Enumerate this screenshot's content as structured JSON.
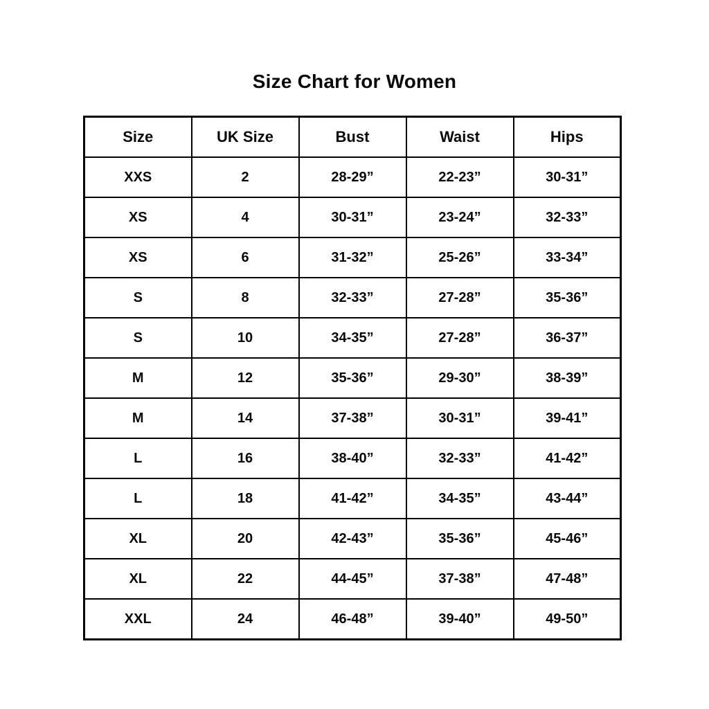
{
  "title": "Size Chart for Women",
  "chart_data": {
    "type": "table",
    "title": "Size Chart for Women",
    "columns": [
      "Size",
      "UK Size",
      "Bust",
      "Waist",
      "Hips"
    ],
    "rows": [
      [
        "XXS",
        "2",
        "28-29”",
        "22-23”",
        "30-31”"
      ],
      [
        "XS",
        "4",
        "30-31”",
        "23-24”",
        "32-33”"
      ],
      [
        "XS",
        "6",
        "31-32”",
        "25-26”",
        "33-34”"
      ],
      [
        "S",
        "8",
        "32-33”",
        "27-28”",
        "35-36”"
      ],
      [
        "S",
        "10",
        "34-35”",
        "27-28”",
        "36-37”"
      ],
      [
        "M",
        "12",
        "35-36”",
        "29-30”",
        "38-39”"
      ],
      [
        "M",
        "14",
        "37-38”",
        "30-31”",
        "39-41”"
      ],
      [
        "L",
        "16",
        "38-40”",
        "32-33”",
        "41-42”"
      ],
      [
        "L",
        "18",
        "41-42”",
        "34-35”",
        "43-44”"
      ],
      [
        "XL",
        "20",
        "42-43”",
        "35-36”",
        "45-46”"
      ],
      [
        "XL",
        "22",
        "44-45”",
        "37-38”",
        "47-48”"
      ],
      [
        "XXL",
        "24",
        "46-48”",
        "39-40”",
        "49-50”"
      ]
    ]
  }
}
